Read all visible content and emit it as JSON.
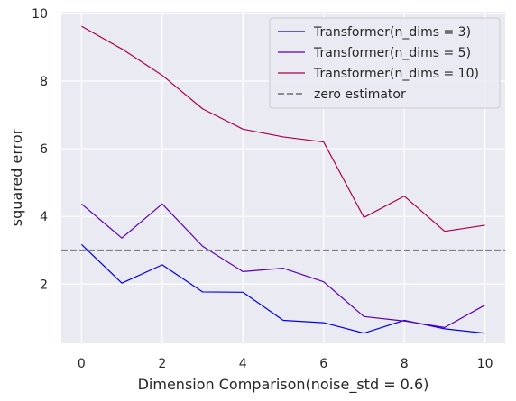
{
  "chart_data": {
    "type": "line",
    "title": "",
    "xlabel": "Dimension Comparison(noise_std = 0.6)",
    "ylabel": "squared error",
    "x": [
      0,
      1,
      2,
      3,
      4,
      5,
      6,
      7,
      8,
      9,
      10
    ],
    "xlim": [
      -0.5,
      10.5
    ],
    "ylim": [
      0.25,
      10.05
    ],
    "xticks": [
      0,
      2,
      4,
      6,
      8,
      10
    ],
    "yticks": [
      2,
      4,
      6,
      8,
      10
    ],
    "grid": true,
    "legend_position": "top-right",
    "series": [
      {
        "name": "Transformer(n_dims = 3)",
        "color": "#0000ee",
        "values": [
          3.17,
          2.03,
          2.57,
          1.77,
          1.76,
          0.93,
          0.86,
          0.55,
          0.93,
          0.68,
          0.55
        ]
      },
      {
        "name": "Transformer(n_dims = 5)",
        "color": "#5a00b4",
        "values": [
          4.37,
          3.36,
          4.37,
          3.12,
          2.37,
          2.47,
          2.07,
          1.04,
          0.91,
          0.72,
          1.38
        ]
      },
      {
        "name": "Transformer(n_dims = 10)",
        "color": "#a8004f",
        "values": [
          9.62,
          8.95,
          8.17,
          7.18,
          6.58,
          6.35,
          6.2,
          3.97,
          4.6,
          3.56,
          3.74
        ]
      }
    ],
    "reference_lines": [
      {
        "name": "zero estimator",
        "y": 3.0,
        "color": "#808080",
        "style": "dashed"
      }
    ]
  }
}
